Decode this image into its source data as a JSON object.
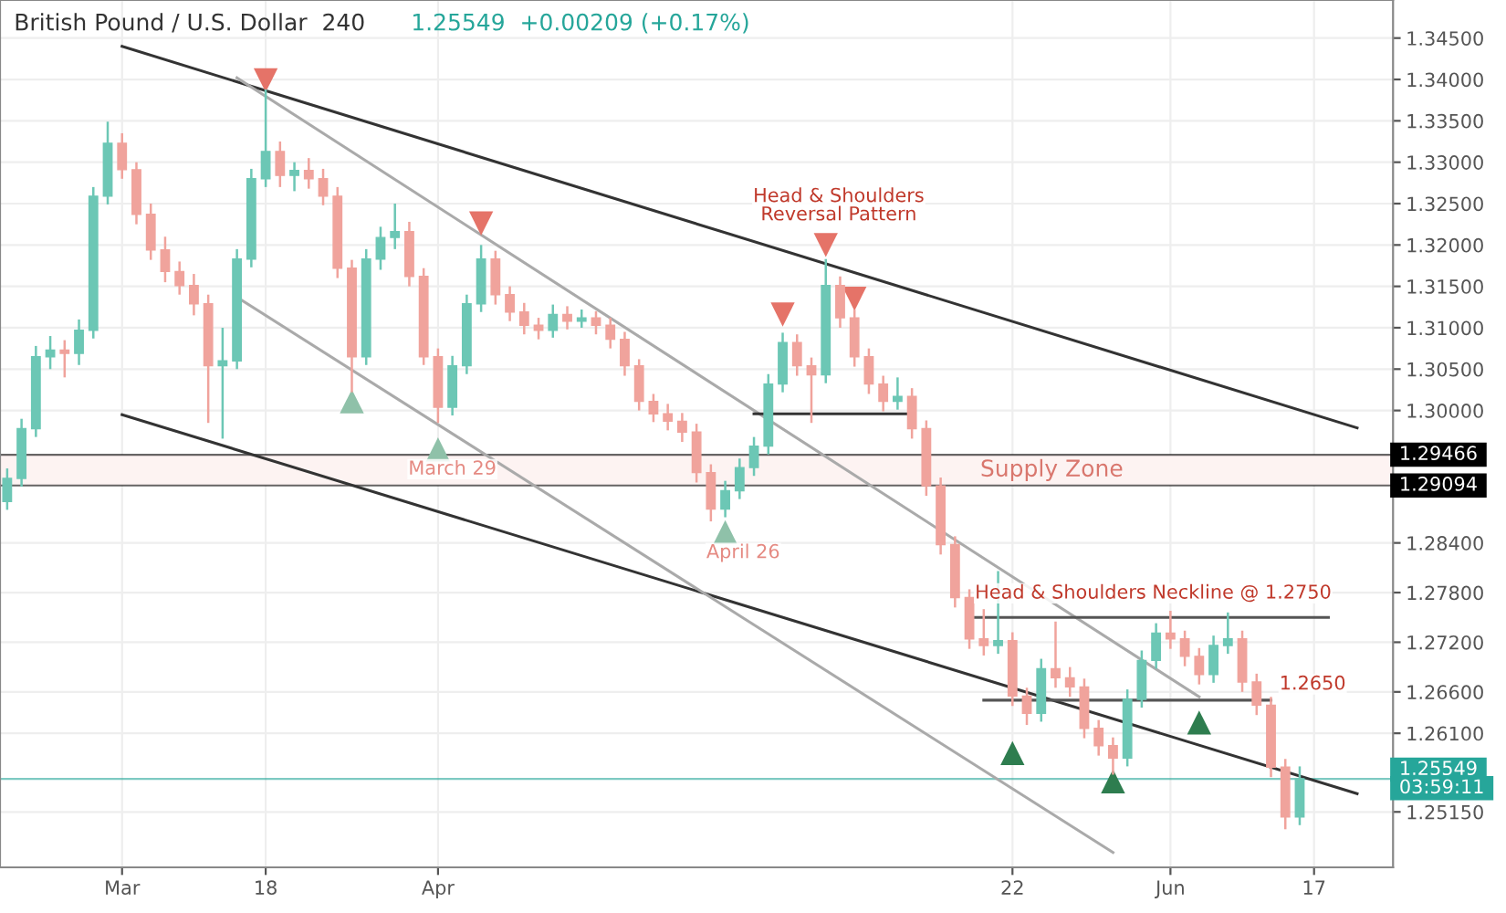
{
  "chart_data": {
    "type": "candlestick",
    "title": "British Pound / U.S. Dollar  240",
    "subtitle": "1.25549  +0.00209 (+0.17%)",
    "categories": [
      null,
      null,
      null,
      null,
      null,
      null,
      null,
      null,
      "Mar",
      null,
      null,
      null,
      null,
      null,
      null,
      null,
      null,
      null,
      "18",
      null,
      null,
      null,
      null,
      null,
      null,
      null,
      null,
      null,
      null,
      null,
      "Apr",
      null,
      null,
      null,
      null,
      null,
      null,
      null,
      null,
      null,
      null,
      null,
      null,
      null,
      null,
      null,
      null,
      null,
      null,
      null,
      null,
      null,
      null,
      null,
      null,
      null,
      null,
      null,
      null,
      null,
      null,
      null,
      null,
      null,
      null,
      null,
      null,
      null,
      null,
      null,
      "22",
      null,
      null,
      null,
      null,
      null,
      null,
      null,
      null,
      null,
      null,
      "Jun",
      null,
      null,
      null,
      null,
      null,
      null,
      null,
      null,
      null,
      "17",
      null,
      null,
      null,
      null,
      null
    ],
    "colors": [
      "#6cc7b5",
      "#6cc7b5",
      "#6cc7b5",
      "#6cc7b5",
      "#f0a39c",
      "#6cc7b5",
      "#6cc7b5",
      "#6cc7b5",
      "#f0a39c",
      "#f0a39c",
      "#f0a39c",
      "#f0a39c",
      "#f0a39c",
      "#f0a39c",
      "#f0a39c",
      "#6cc7b5",
      "#6cc7b5",
      "#6cc7b5",
      "#6cc7b5",
      "#f0a39c",
      "#6cc7b5",
      "#f0a39c",
      "#f0a39c",
      "#f0a39c",
      "#f0a39c",
      "#6cc7b5",
      "#6cc7b5",
      "#6cc7b5",
      "#f0a39c",
      "#f0a39c",
      "#f0a39c",
      "#6cc7b5",
      "#6cc7b5",
      "#6cc7b5",
      "#f0a39c",
      "#f0a39c",
      "#f0a39c",
      "#f0a39c",
      "#6cc7b5",
      "#f0a39c",
      "#6cc7b5",
      "#f0a39c",
      "#f0a39c",
      "#f0a39c",
      "#f0a39c",
      "#f0a39c",
      "#f0a39c",
      "#f0a39c",
      "#f0a39c",
      "#f0a39c",
      "#6cc7b5",
      "#6cc7b5",
      "#6cc7b5",
      "#6cc7b5",
      "#6cc7b5",
      "#f0a39c",
      "#f0a39c",
      "#6cc7b5",
      "#f0a39c",
      "#f0a39c",
      "#f0a39c",
      "#f0a39c",
      "#6cc7b5",
      "#f0a39c",
      "#f0a39c",
      "#f0a39c",
      "#f0a39c",
      "#f0a39c",
      "#f0a39c",
      "#6cc7b5",
      "#f0a39c",
      "#f0a39c",
      "#6cc7b5",
      "#f0a39c",
      "#f0a39c",
      "#f0a39c",
      "#f0a39c",
      "#f0a39c",
      "#6cc7b5",
      "#6cc7b5",
      "#6cc7b5",
      "#f0a39c",
      "#f0a39c",
      "#f0a39c",
      "#6cc7b5",
      "#6cc7b5",
      "#f0a39c",
      "#f0a39c",
      "#f0a39c",
      "#f0a39c",
      "#6cc7b5",
      null,
      null,
      null,
      null,
      null,
      null
    ],
    "ohlc": [
      [
        1.289,
        1.293,
        1.288,
        1.2918
      ],
      [
        1.2918,
        1.299,
        1.2908,
        1.2978
      ],
      [
        1.2978,
        1.3078,
        1.2968,
        1.3065
      ],
      [
        1.3065,
        1.309,
        1.305,
        1.3073
      ],
      [
        1.3073,
        1.3085,
        1.304,
        1.3069
      ],
      [
        1.3069,
        1.311,
        1.3055,
        1.3097
      ],
      [
        1.3097,
        1.327,
        1.3087,
        1.3259
      ],
      [
        1.3259,
        1.3349,
        1.3249,
        1.3323
      ],
      [
        1.3323,
        1.3335,
        1.328,
        1.3291
      ],
      [
        1.3291,
        1.33,
        1.3225,
        1.3237
      ],
      [
        1.3237,
        1.325,
        1.3182,
        1.3194
      ],
      [
        1.3194,
        1.321,
        1.3155,
        1.3168
      ],
      [
        1.3168,
        1.318,
        1.314,
        1.3151
      ],
      [
        1.3151,
        1.3165,
        1.3115,
        1.3129
      ],
      [
        1.3129,
        1.314,
        1.2985,
        1.3054
      ],
      [
        1.3054,
        1.31,
        1.2966,
        1.306
      ],
      [
        1.306,
        1.3195,
        1.305,
        1.3183
      ],
      [
        1.3183,
        1.3292,
        1.3173,
        1.328
      ],
      [
        1.328,
        1.3388,
        1.327,
        1.3313
      ],
      [
        1.3313,
        1.3325,
        1.327,
        1.3284
      ],
      [
        1.3284,
        1.33,
        1.3265,
        1.329
      ],
      [
        1.329,
        1.3305,
        1.3268,
        1.328
      ],
      [
        1.328,
        1.3292,
        1.3248,
        1.3259
      ],
      [
        1.3259,
        1.327,
        1.316,
        1.3172
      ],
      [
        1.3172,
        1.3182,
        1.3022,
        1.3065
      ],
      [
        1.3065,
        1.3195,
        1.3055,
        1.3183
      ],
      [
        1.3183,
        1.3222,
        1.317,
        1.3209
      ],
      [
        1.3209,
        1.325,
        1.3195,
        1.3216
      ],
      [
        1.3216,
        1.3228,
        1.315,
        1.3162
      ],
      [
        1.3162,
        1.3172,
        1.3055,
        1.3065
      ],
      [
        1.3065,
        1.3075,
        1.2985,
        1.3004
      ],
      [
        1.3004,
        1.3066,
        1.2994,
        1.3054
      ],
      [
        1.3054,
        1.314,
        1.3044,
        1.3129
      ],
      [
        1.3129,
        1.32,
        1.3119,
        1.3183
      ],
      [
        1.3183,
        1.3193,
        1.3128,
        1.314
      ],
      [
        1.314,
        1.315,
        1.3108,
        1.3119
      ],
      [
        1.3119,
        1.313,
        1.3092,
        1.3103
      ],
      [
        1.3103,
        1.3112,
        1.3086,
        1.3097
      ],
      [
        1.3097,
        1.3128,
        1.3088,
        1.3116
      ],
      [
        1.3116,
        1.3126,
        1.3098,
        1.3108
      ],
      [
        1.3108,
        1.3122,
        1.31,
        1.3112
      ],
      [
        1.3112,
        1.312,
        1.3092,
        1.3103
      ],
      [
        1.3103,
        1.3112,
        1.3075,
        1.3086
      ],
      [
        1.3086,
        1.3095,
        1.3042,
        1.3054
      ],
      [
        1.3054,
        1.3062,
        1.3,
        1.3011
      ],
      [
        1.3011,
        1.302,
        1.2986,
        1.2996
      ],
      [
        1.2996,
        1.3008,
        1.2976,
        1.2987
      ],
      [
        1.2987,
        1.2997,
        1.2962,
        1.2974
      ],
      [
        1.2974,
        1.2984,
        1.2913,
        1.2925
      ],
      [
        1.2925,
        1.2935,
        1.2866,
        1.2881
      ],
      [
        1.2881,
        1.2915,
        1.2871,
        1.2903
      ],
      [
        1.2903,
        1.2942,
        1.2893,
        1.2931
      ],
      [
        1.2931,
        1.2968,
        1.2921,
        1.2957
      ],
      [
        1.2957,
        1.3044,
        1.2947,
        1.3032
      ],
      [
        1.3032,
        1.3094,
        1.3022,
        1.3082
      ],
      [
        1.3082,
        1.3092,
        1.3042,
        1.3054
      ],
      [
        1.3054,
        1.3064,
        1.2985,
        1.3043
      ],
      [
        1.3043,
        1.3183,
        1.3033,
        1.3151
      ],
      [
        1.3151,
        1.3162,
        1.31,
        1.3112
      ],
      [
        1.3112,
        1.3122,
        1.3053,
        1.3065
      ],
      [
        1.3065,
        1.3075,
        1.302,
        1.3032
      ],
      [
        1.3032,
        1.3042,
        1.2999,
        1.3011
      ],
      [
        1.3011,
        1.304,
        1.3001,
        1.3017
      ],
      [
        1.3017,
        1.3027,
        1.2966,
        1.2978
      ],
      [
        1.2978,
        1.2988,
        1.2897,
        1.2909
      ],
      [
        1.2909,
        1.2919,
        1.2826,
        1.2838
      ],
      [
        1.2838,
        1.2848,
        1.2762,
        1.2774
      ],
      [
        1.2774,
        1.2784,
        1.2712,
        1.2724
      ],
      [
        1.2724,
        1.276,
        1.2704,
        1.2716
      ],
      [
        1.2716,
        1.2806,
        1.2706,
        1.2722
      ],
      [
        1.2722,
        1.2732,
        1.2643,
        1.2655
      ],
      [
        1.2655,
        1.2665,
        1.262,
        1.2634
      ],
      [
        1.2634,
        1.27,
        1.2624,
        1.2688
      ],
      [
        1.2688,
        1.2745,
        1.2665,
        1.2677
      ],
      [
        1.2677,
        1.269,
        1.2654,
        1.2666
      ],
      [
        1.2666,
        1.2676,
        1.2604,
        1.2616
      ],
      [
        1.2616,
        1.2626,
        1.2583,
        1.2595
      ],
      [
        1.2595,
        1.2605,
        1.256,
        1.258
      ],
      [
        1.258,
        1.2663,
        1.257,
        1.2651
      ],
      [
        1.2651,
        1.271,
        1.2641,
        1.2698
      ],
      [
        1.2698,
        1.2743,
        1.2688,
        1.2731
      ],
      [
        1.2731,
        1.2758,
        1.2712,
        1.2724
      ],
      [
        1.2724,
        1.2734,
        1.2691,
        1.2703
      ],
      [
        1.2703,
        1.2713,
        1.2669,
        1.2681
      ],
      [
        1.2681,
        1.2728,
        1.2671,
        1.2716
      ],
      [
        1.2716,
        1.2756,
        1.2706,
        1.2724
      ],
      [
        1.2724,
        1.2734,
        1.266,
        1.2672
      ],
      [
        1.2672,
        1.2682,
        1.2632,
        1.2644
      ],
      [
        1.2644,
        1.2654,
        1.2557,
        1.2569
      ],
      [
        1.2569,
        1.2579,
        1.2494,
        1.2509
      ],
      [
        1.2509,
        1.257,
        1.2499,
        1.2555
      ],
      null,
      null,
      null,
      null,
      null,
      null
    ],
    "series": [
      {
        "type": "line",
        "color": "#333333",
        "values": [
          null,
          null,
          null,
          null,
          null,
          null,
          null,
          null,
          1.344,
          null,
          null,
          null,
          null,
          null,
          null,
          null,
          null,
          null,
          null,
          null,
          null,
          null,
          null,
          null,
          null,
          null,
          null,
          null,
          null,
          null,
          null,
          null,
          null,
          null,
          null,
          null,
          null,
          null,
          null,
          null,
          null,
          null,
          null,
          null,
          null,
          null,
          null,
          null,
          null,
          null,
          null,
          null,
          null,
          null,
          null,
          null,
          null,
          null,
          null,
          null,
          null,
          null,
          null,
          null,
          null,
          null,
          null,
          null,
          null,
          null,
          null,
          null,
          null,
          null,
          null,
          null,
          null,
          null,
          null,
          null,
          null,
          null,
          null,
          null,
          null,
          null,
          null,
          null,
          null,
          null,
          null,
          null,
          null,
          null,
          1.2979,
          null,
          null
        ]
      },
      {
        "type": "line",
        "color": "#333333",
        "values": [
          null,
          null,
          null,
          null,
          null,
          null,
          null,
          null,
          1.2995,
          null,
          null,
          null,
          null,
          null,
          null,
          null,
          null,
          null,
          null,
          null,
          null,
          null,
          null,
          null,
          null,
          null,
          null,
          null,
          null,
          null,
          null,
          null,
          null,
          null,
          null,
          null,
          null,
          null,
          null,
          null,
          null,
          null,
          null,
          null,
          null,
          null,
          null,
          null,
          null,
          null,
          null,
          null,
          null,
          null,
          null,
          null,
          null,
          null,
          null,
          null,
          null,
          null,
          null,
          null,
          null,
          null,
          null,
          null,
          null,
          null,
          null,
          null,
          null,
          null,
          null,
          null,
          null,
          null,
          null,
          null,
          null,
          null,
          null,
          null,
          null,
          null,
          null,
          null,
          null,
          null,
          null,
          null,
          null,
          null,
          1.2537,
          null,
          null
        ]
      },
      {
        "type": "line",
        "color": "#aaaaaa",
        "values": [
          null,
          null,
          null,
          null,
          null,
          null,
          null,
          null,
          null,
          null,
          null,
          null,
          null,
          null,
          null,
          null,
          1.3402,
          null,
          null,
          null,
          null,
          null,
          null,
          null,
          null,
          null,
          null,
          null,
          null,
          null,
          null,
          null,
          null,
          null,
          null,
          null,
          null,
          null,
          null,
          null,
          null,
          null,
          null,
          null,
          null,
          null,
          null,
          null,
          null,
          null,
          null,
          null,
          null,
          null,
          null,
          null,
          null,
          null,
          null,
          null,
          null,
          null,
          null,
          null,
          null,
          null,
          null,
          null,
          null,
          null,
          null,
          null,
          null,
          null,
          null,
          null,
          null,
          null,
          null,
          null,
          null,
          null,
          null,
          1.2654,
          null,
          null,
          null,
          null,
          null,
          null,
          null,
          null,
          null,
          null,
          null,
          null,
          null
        ]
      },
      {
        "type": "line",
        "color": "#aaaaaa",
        "values": [
          null,
          null,
          null,
          null,
          null,
          null,
          null,
          null,
          null,
          null,
          null,
          null,
          null,
          null,
          null,
          null,
          1.3137,
          null,
          null,
          null,
          null,
          null,
          null,
          null,
          null,
          null,
          null,
          null,
          null,
          null,
          null,
          null,
          null,
          null,
          null,
          null,
          null,
          null,
          null,
          null,
          null,
          null,
          null,
          null,
          null,
          null,
          null,
          null,
          null,
          null,
          null,
          null,
          null,
          null,
          null,
          null,
          null,
          null,
          null,
          null,
          null,
          null,
          null,
          null,
          null,
          null,
          null,
          null,
          null,
          null,
          null,
          null,
          null,
          null,
          null,
          null,
          null,
          1.2466,
          null,
          null,
          null,
          null,
          null,
          null,
          null,
          null,
          null,
          null,
          null,
          null,
          null,
          null,
          null,
          null,
          null,
          null,
          null
        ]
      },
      {
        "type": "line",
        "color": "#555555",
        "values": [
          null,
          null,
          null,
          null,
          null,
          null,
          null,
          null,
          null,
          null,
          null,
          null,
          null,
          null,
          null,
          null,
          null,
          null,
          null,
          null,
          null,
          null,
          null,
          null,
          null,
          null,
          null,
          null,
          null,
          null,
          null,
          null,
          null,
          null,
          null,
          null,
          null,
          null,
          null,
          null,
          null,
          null,
          null,
          null,
          null,
          null,
          null,
          null,
          null,
          null,
          null,
          null,
          null,
          null,
          null,
          null,
          null,
          null,
          null,
          null,
          null,
          null,
          null,
          null,
          null,
          null,
          null,
          1.275,
          null,
          null,
          null,
          null,
          null,
          null,
          null,
          null,
          null,
          null,
          null,
          null,
          null,
          null,
          null,
          null,
          null,
          null,
          null,
          null,
          null,
          null,
          null,
          null,
          1.275,
          null,
          null,
          null,
          null
        ]
      },
      {
        "type": "line",
        "color": "#555555",
        "values": [
          null,
          null,
          null,
          null,
          null,
          null,
          null,
          null,
          null,
          null,
          null,
          null,
          null,
          null,
          null,
          null,
          null,
          null,
          null,
          null,
          null,
          null,
          null,
          null,
          null,
          null,
          null,
          null,
          null,
          null,
          null,
          null,
          null,
          null,
          null,
          null,
          null,
          null,
          null,
          null,
          null,
          null,
          null,
          null,
          null,
          null,
          null,
          null,
          null,
          null,
          null,
          null,
          null,
          null,
          null,
          null,
          null,
          null,
          null,
          null,
          null,
          null,
          null,
          null,
          null,
          null,
          null,
          null,
          1.265,
          null,
          null,
          null,
          null,
          null,
          null,
          null,
          null,
          null,
          null,
          null,
          null,
          null,
          null,
          null,
          null,
          null,
          null,
          null,
          1.265,
          null,
          null,
          null,
          null,
          null,
          null,
          null,
          null
        ]
      },
      {
        "type": "line",
        "color": "#333333",
        "values": [
          null,
          null,
          null,
          null,
          null,
          null,
          null,
          null,
          null,
          null,
          null,
          null,
          null,
          null,
          null,
          null,
          null,
          null,
          null,
          null,
          null,
          null,
          null,
          null,
          null,
          null,
          null,
          null,
          null,
          null,
          null,
          null,
          null,
          null,
          null,
          null,
          null,
          null,
          null,
          null,
          null,
          null,
          null,
          null,
          null,
          null,
          null,
          null,
          null,
          null,
          null,
          null,
          1.2996,
          null,
          null,
          null,
          null,
          null,
          null,
          null,
          null,
          null,
          null,
          1.2996,
          null,
          null,
          null,
          null,
          null,
          null,
          null,
          null,
          null,
          null,
          null,
          null,
          null,
          null,
          null,
          null,
          null,
          null,
          null,
          null,
          null,
          null,
          null,
          null,
          null,
          null,
          null,
          null,
          null,
          null,
          null,
          null,
          null
        ]
      },
      {
        "type": "scatter",
        "marker": "triangle",
        "color": "#8fc1a9",
        "values": [
          null,
          null,
          null,
          null,
          null,
          null,
          null,
          null,
          null,
          null,
          null,
          null,
          null,
          null,
          null,
          null,
          null,
          null,
          null,
          null,
          null,
          null,
          null,
          null,
          1.3011,
          null,
          null,
          null,
          null,
          null,
          1.2953,
          null,
          null,
          null,
          null,
          null,
          null,
          null,
          null,
          null,
          null,
          null,
          null,
          null,
          null,
          null,
          null,
          null,
          null,
          null,
          1.2853,
          null,
          null,
          null,
          null,
          null,
          null,
          null,
          null,
          null,
          null,
          null,
          null,
          null,
          null,
          null,
          null,
          null,
          null,
          null,
          null,
          null,
          null,
          null,
          null,
          null,
          null,
          null,
          null,
          null,
          null,
          null,
          null,
          null,
          null,
          null,
          null,
          null,
          null,
          null,
          null,
          null,
          null,
          null,
          null,
          null,
          null
        ]
      },
      {
        "type": "scatter",
        "marker": "triangle",
        "color": "#2e7d4f",
        "values": [
          null,
          null,
          null,
          null,
          null,
          null,
          null,
          null,
          null,
          null,
          null,
          null,
          null,
          null,
          null,
          null,
          null,
          null,
          null,
          null,
          null,
          null,
          null,
          null,
          null,
          null,
          null,
          null,
          null,
          null,
          null,
          null,
          null,
          null,
          null,
          null,
          null,
          null,
          null,
          null,
          null,
          null,
          null,
          null,
          null,
          null,
          null,
          null,
          null,
          null,
          null,
          null,
          null,
          null,
          null,
          null,
          null,
          null,
          null,
          null,
          null,
          null,
          null,
          null,
          null,
          null,
          null,
          null,
          null,
          null,
          1.2586,
          null,
          null,
          null,
          null,
          null,
          null,
          1.2552,
          null,
          null,
          null,
          null,
          null,
          1.2623,
          null,
          null,
          null,
          null,
          null,
          null,
          null,
          null,
          null,
          null,
          null,
          null,
          null
        ]
      },
      {
        "type": "scatter",
        "marker": "triangle_down",
        "color": "#e57368",
        "values": [
          null,
          null,
          null,
          null,
          null,
          null,
          null,
          null,
          null,
          null,
          null,
          null,
          null,
          null,
          null,
          null,
          null,
          null,
          1.3399,
          null,
          null,
          null,
          null,
          null,
          null,
          null,
          null,
          null,
          null,
          null,
          null,
          null,
          null,
          1.3226,
          null,
          null,
          null,
          null,
          null,
          null,
          null,
          null,
          null,
          null,
          null,
          null,
          null,
          null,
          null,
          null,
          null,
          null,
          null,
          null,
          1.3116,
          null,
          null,
          1.32,
          null,
          1.3135,
          null,
          null,
          null,
          null,
          null,
          null,
          null,
          null,
          null,
          null,
          null,
          null,
          null,
          null,
          null,
          null,
          null,
          null,
          null,
          null,
          null,
          null,
          null,
          null,
          null,
          null,
          null,
          null,
          null,
          null,
          null,
          null,
          null,
          null,
          null,
          null,
          null
        ]
      }
    ],
    "ylim": [
      1.2448,
      1.3496
    ],
    "yticks": [
      {
        "value": 1.345,
        "label": "1.34500"
      },
      {
        "value": 1.34,
        "label": "1.34000"
      },
      {
        "value": 1.335,
        "label": "1.33500"
      },
      {
        "value": 1.33,
        "label": "1.33000"
      },
      {
        "value": 1.325,
        "label": "1.32500"
      },
      {
        "value": 1.32,
        "label": "1.32000"
      },
      {
        "value": 1.315,
        "label": "1.31500"
      },
      {
        "value": 1.31,
        "label": "1.31000"
      },
      {
        "value": 1.305,
        "label": "1.30500"
      },
      {
        "value": 1.3,
        "label": "1.30000"
      },
      {
        "value": 1.284,
        "label": "1.28400"
      },
      {
        "value": 1.278,
        "label": "1.27800"
      },
      {
        "value": 1.272,
        "label": "1.27200"
      },
      {
        "value": 1.266,
        "label": "1.26600"
      },
      {
        "value": 1.261,
        "label": "1.26100"
      },
      {
        "value": 1.2515,
        "label": "1.25150"
      }
    ],
    "ref_lines": [
      {
        "axis": "y",
        "value": 1.29466,
        "label": "1.29466",
        "color": "#000000"
      },
      {
        "axis": "y",
        "value": 1.29094,
        "label": "1.29094",
        "color": "#000000"
      },
      {
        "axis": "y",
        "value": 1.25549,
        "label": "1.25549",
        "color": "#26a69a"
      }
    ],
    "bands": [
      {
        "axis": "y",
        "from": 1.29094,
        "to": 1.29466,
        "label": "Supply Zone",
        "color": "#fdf3f2"
      }
    ],
    "annotations": [
      "Head & Shoulders\nReversal Pattern",
      "March 29",
      "April 26",
      "Head & Shoulders Neckline @ 1.2750",
      "1.2650",
      "03:59:11"
    ],
    "grid": true
  }
}
